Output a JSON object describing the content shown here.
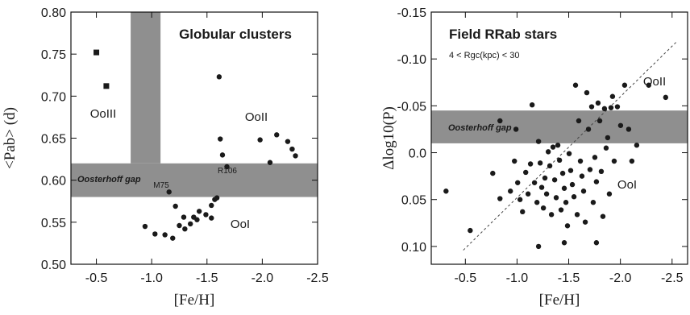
{
  "chart_data": [
    {
      "type": "scatter",
      "title": "Globular clusters",
      "x_label": "[Fe/H]",
      "y_label": "<Pab> (d)",
      "annotations": [
        "OoIII",
        "OoII",
        "OoI",
        "Oosterhoff gap",
        "M75",
        "R106"
      ],
      "xlim": [
        -0.27,
        -2.5
      ],
      "ylim": [
        0.5,
        0.8
      ],
      "xticks": [
        -0.5,
        {
          "value": -1.0,
          "label": "-1.0"
        },
        -1.5,
        {
          "value": -2.0,
          "label": "-2.0"
        },
        -2.5
      ],
      "yticks": [
        {
          "value": 0.5,
          "label": "0.50"
        },
        0.55,
        {
          "value": 0.6,
          "label": "0.60"
        },
        0.65,
        {
          "value": 0.7,
          "label": "0.70"
        },
        0.75,
        {
          "value": 0.8,
          "label": "0.80"
        }
      ],
      "color": "#1a1a1a",
      "region_color": "#8f8f8f",
      "shaded_regions": [
        {
          "x": [
            -0.81,
            -1.08
          ],
          "y": [
            0.62,
            0.8
          ]
        },
        {
          "x": [
            -0.27,
            -2.5
          ],
          "y": [
            0.58,
            0.62
          ]
        }
      ],
      "series": [
        {
          "marker": "square",
          "x": [
            -0.5,
            -0.59
          ],
          "y": [
            0.752,
            0.712
          ]
        },
        {
          "marker": "circle",
          "x": [
            -0.94,
            -1.03,
            -1.12,
            -1.157,
            -1.215,
            -1.19,
            -1.25,
            -1.29,
            -1.3,
            -1.35,
            -1.38,
            -1.41,
            -1.43,
            -1.49,
            -1.54,
            -1.57,
            -1.59,
            -1.61,
            -1.62,
            -1.64,
            -1.68,
            -1.54,
            -1.98,
            -2.07,
            -2.13,
            -2.23,
            -2.27,
            -2.3
          ],
          "y": [
            0.545,
            0.536,
            0.535,
            0.586,
            0.569,
            0.531,
            0.546,
            0.556,
            0.542,
            0.548,
            0.556,
            0.553,
            0.563,
            0.559,
            0.57,
            0.577,
            0.579,
            0.723,
            0.649,
            0.63,
            0.616,
            0.555,
            0.648,
            0.621,
            0.654,
            0.646,
            0.637,
            0.629
          ]
        }
      ]
    },
    {
      "type": "scatter",
      "title": "Field RRab stars",
      "subtitle": "4 < Rgc(kpc) < 30",
      "x_label": "[Fe/H]",
      "y_label": "Δlog10(P)",
      "annotations": [
        "OoII",
        "OoI",
        "Oosterhoff gap"
      ],
      "xlim": [
        -0.17,
        -2.65
      ],
      "ylim": [
        0.119,
        -0.15
      ],
      "xticks": [
        -0.5,
        {
          "value": -1.0,
          "label": "-1.0"
        },
        -1.5,
        {
          "value": -2.0,
          "label": "-2.0"
        },
        -2.5
      ],
      "yticks": [
        {
          "value": 0.1,
          "label": "0.10"
        },
        0.05,
        {
          "value": 0.0,
          "label": "0.0"
        },
        -0.05,
        {
          "value": -0.1,
          "label": "-0.10"
        },
        -0.15
      ],
      "color": "#1a1a1a",
      "region_color": "#8f8f8f",
      "shaded_regions": [
        {
          "x": [
            -0.17,
            -2.65
          ],
          "y": [
            -0.045,
            -0.01
          ]
        }
      ],
      "reference_line": {
        "x": [
          -0.48,
          -2.55
        ],
        "y": [
          0.104,
          -0.119
        ]
      },
      "series": [
        {
          "marker": "circle",
          "x": [
            -0.313,
            -0.547,
            -0.765,
            -0.835,
            -0.936,
            -0.975,
            -1.006,
            -1.029,
            -1.053,
            -1.084,
            -1.107,
            -1.13,
            -1.146,
            -1.169,
            -1.193,
            -1.208,
            -1.224,
            -1.239,
            -1.255,
            -1.27,
            -1.286,
            -1.302,
            -1.317,
            -1.333,
            -1.348,
            -1.364,
            -1.379,
            -1.395,
            -1.411,
            -1.426,
            -1.442,
            -1.457,
            -1.473,
            -1.488,
            -1.504,
            -1.519,
            -1.535,
            -1.551,
            -1.566,
            -1.582,
            -1.597,
            -1.613,
            -1.628,
            -1.644,
            -1.66,
            -1.675,
            -1.691,
            -1.706,
            -1.722,
            -1.737,
            -1.753,
            -1.768,
            -1.784,
            -1.8,
            -1.815,
            -1.831,
            -1.846,
            -1.862,
            -1.877,
            -1.893,
            -1.909,
            -1.924,
            -1.94,
            -1.971,
            -2.002,
            -2.041,
            -2.08,
            -2.111,
            -2.158,
            -1.208,
            -1.457,
            -1.768,
            -0.835,
            -0.99,
            -2.274,
            -2.438
          ],
          "y": [
            0.041,
            0.083,
            0.022,
            0.049,
            0.041,
            0.009,
            0.032,
            0.05,
            0.063,
            0.021,
            0.044,
            0.012,
            -0.051,
            0.032,
            0.053,
            -0.012,
            0.011,
            0.037,
            0.059,
            0.027,
            0.044,
            -0.001,
            0.014,
            0.066,
            -0.006,
            0.029,
            0.048,
            -0.008,
            0.008,
            0.061,
            0.022,
            0.038,
            0.053,
            0.078,
            0.001,
            0.019,
            0.034,
            0.047,
            -0.072,
            0.066,
            -0.034,
            0.009,
            0.025,
            0.041,
            0.074,
            -0.064,
            -0.025,
            0.018,
            -0.049,
            0.053,
            0.005,
            0.031,
            -0.053,
            -0.034,
            0.02,
            0.068,
            -0.047,
            -0.005,
            -0.016,
            0.044,
            -0.048,
            -0.06,
            0.009,
            -0.049,
            -0.029,
            -0.072,
            -0.025,
            0.009,
            -0.008,
            0.1,
            0.096,
            0.096,
            -0.034,
            -0.025,
            -0.072,
            -0.059
          ]
        }
      ]
    }
  ]
}
